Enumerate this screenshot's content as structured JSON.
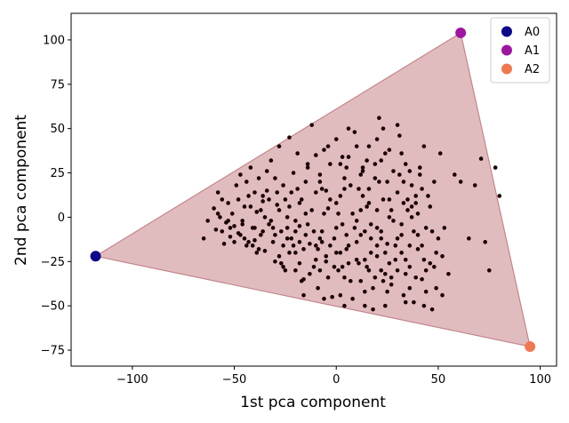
{
  "chart_data": {
    "type": "scatter",
    "title": "",
    "xlabel": "1st pca component",
    "ylabel": "2nd pca component",
    "xlim": [
      -130,
      108
    ],
    "ylim": [
      -84,
      115
    ],
    "xticks": [
      -100,
      -50,
      0,
      50,
      100
    ],
    "yticks": [
      -75,
      -50,
      -25,
      0,
      25,
      50,
      75,
      100
    ],
    "grid": false,
    "legend_position": "top-right",
    "hull": {
      "vertices": [
        [
          -118,
          -22
        ],
        [
          61,
          104
        ],
        [
          95,
          -73
        ]
      ],
      "fill": "#c47a80",
      "edge": "#b0646c"
    },
    "archetypes": [
      {
        "name": "A0",
        "x": -118,
        "y": -22,
        "color": "#0d0887"
      },
      {
        "name": "A1",
        "x": 61,
        "y": 104,
        "color": "#9c179e"
      },
      {
        "name": "A2",
        "x": 95,
        "y": -73,
        "color": "#ed7953"
      }
    ],
    "points_color": "#1a0000",
    "points": [
      [
        -65,
        -12
      ],
      [
        -63,
        -2
      ],
      [
        -60,
        5
      ],
      [
        -59,
        -7
      ],
      [
        -58,
        14
      ],
      [
        -57,
        0
      ],
      [
        -56,
        -8
      ],
      [
        -55,
        -15
      ],
      [
        -54,
        -3
      ],
      [
        -53,
        8
      ],
      [
        -52,
        -11
      ],
      [
        -51,
        2
      ],
      [
        -50,
        -5
      ],
      [
        -49,
        18
      ],
      [
        -48,
        -9
      ],
      [
        -47,
        24
      ],
      [
        -46,
        -2
      ],
      [
        -45,
        6
      ],
      [
        -44,
        -16
      ],
      [
        -43,
        12
      ],
      [
        -42,
        28
      ],
      [
        -41,
        -6
      ],
      [
        -40,
        -13
      ],
      [
        -39,
        3
      ],
      [
        -38,
        22
      ],
      [
        -37,
        -10
      ],
      [
        -36,
        9
      ],
      [
        -35,
        -19
      ],
      [
        -34,
        15
      ],
      [
        -33,
        -4
      ],
      [
        -32,
        32
      ],
      [
        -31,
        -14
      ],
      [
        -30,
        -25
      ],
      [
        -29,
        7
      ],
      [
        -28,
        40
      ],
      [
        -27,
        -8
      ],
      [
        -26,
        18
      ],
      [
        -25,
        -30
      ],
      [
        -24,
        0
      ],
      [
        -23,
        45
      ],
      [
        -22,
        -12
      ],
      [
        -21,
        25
      ],
      [
        -20,
        -20
      ],
      [
        -19,
        36
      ],
      [
        -18,
        -5
      ],
      [
        -17,
        10
      ],
      [
        -16,
        -35
      ],
      [
        -15,
        2
      ],
      [
        -14,
        28
      ],
      [
        -13,
        -15
      ],
      [
        -12,
        52
      ],
      [
        -11,
        -28
      ],
      [
        -10,
        14
      ],
      [
        -9,
        -40
      ],
      [
        -8,
        20
      ],
      [
        -7,
        -8
      ],
      [
        -6,
        38
      ],
      [
        -5,
        -22
      ],
      [
        -4,
        5
      ],
      [
        -3,
        30
      ],
      [
        -2,
        -45
      ],
      [
        -1,
        -12
      ],
      [
        0,
        44
      ],
      [
        1,
        -30
      ],
      [
        2,
        12
      ],
      [
        3,
        -4
      ],
      [
        4,
        22
      ],
      [
        5,
        -18
      ],
      [
        6,
        34
      ],
      [
        7,
        -36
      ],
      [
        8,
        2
      ],
      [
        9,
        48
      ],
      [
        10,
        -24
      ],
      [
        11,
        16
      ],
      [
        12,
        -10
      ],
      [
        13,
        28
      ],
      [
        14,
        -42
      ],
      [
        15,
        6
      ],
      [
        16,
        40
      ],
      [
        17,
        -20
      ],
      [
        18,
        -52
      ],
      [
        19,
        22
      ],
      [
        20,
        -6
      ],
      [
        21,
        56
      ],
      [
        22,
        -30
      ],
      [
        23,
        10
      ],
      [
        24,
        36
      ],
      [
        25,
        -15
      ],
      [
        26,
        0
      ],
      [
        27,
        -38
      ],
      [
        28,
        26
      ],
      [
        29,
        -24
      ],
      [
        30,
        14
      ],
      [
        31,
        46
      ],
      [
        32,
        -10
      ],
      [
        33,
        -44
      ],
      [
        34,
        30
      ],
      [
        35,
        4
      ],
      [
        36,
        -28
      ],
      [
        37,
        18
      ],
      [
        38,
        -48
      ],
      [
        39,
        8
      ],
      [
        40,
        -18
      ],
      [
        41,
        24
      ],
      [
        42,
        -35
      ],
      [
        43,
        40
      ],
      [
        44,
        -6
      ],
      [
        45,
        12
      ],
      [
        46,
        -26
      ],
      [
        47,
        -52
      ],
      [
        48,
        20
      ],
      [
        49,
        -40
      ],
      [
        50,
        -12
      ],
      [
        51,
        36
      ],
      [
        52,
        -22
      ],
      [
        55,
        -32
      ],
      [
        58,
        24
      ],
      [
        61,
        20
      ],
      [
        65,
        -12
      ],
      [
        68,
        18
      ],
      [
        71,
        33
      ],
      [
        73,
        -14
      ],
      [
        75,
        -30
      ],
      [
        78,
        28
      ],
      [
        80,
        12
      ],
      [
        -30,
        -10
      ],
      [
        -20,
        -2
      ],
      [
        -10,
        -16
      ],
      [
        0,
        -6
      ],
      [
        10,
        -14
      ],
      [
        20,
        -22
      ],
      [
        30,
        -12
      ],
      [
        -25,
        10
      ],
      [
        -15,
        20
      ],
      [
        -5,
        15
      ],
      [
        5,
        28
      ],
      [
        15,
        32
      ],
      [
        25,
        20
      ],
      [
        35,
        10
      ],
      [
        -35,
        0
      ],
      [
        -45,
        -12
      ],
      [
        -15,
        -10
      ],
      [
        -5,
        -25
      ],
      [
        5,
        -10
      ],
      [
        15,
        -28
      ],
      [
        25,
        -42
      ],
      [
        -20,
        -30
      ],
      [
        -10,
        -24
      ],
      [
        0,
        8
      ],
      [
        10,
        -2
      ],
      [
        20,
        4
      ],
      [
        30,
        -30
      ],
      [
        40,
        2
      ],
      [
        -38,
        -18
      ],
      [
        -28,
        -22
      ],
      [
        -18,
        8
      ],
      [
        -8,
        -30
      ],
      [
        2,
        -20
      ],
      [
        12,
        -36
      ],
      [
        22,
        -12
      ],
      [
        32,
        -20
      ],
      [
        -40,
        14
      ],
      [
        -30,
        22
      ],
      [
        -10,
        35
      ],
      [
        10,
        40
      ],
      [
        20,
        44
      ],
      [
        30,
        52
      ],
      [
        -26,
        -16
      ],
      [
        -16,
        -18
      ],
      [
        -6,
        2
      ],
      [
        4,
        -34
      ],
      [
        14,
        -8
      ],
      [
        24,
        -50
      ],
      [
        34,
        -32
      ],
      [
        44,
        -42
      ],
      [
        -52,
        -6
      ],
      [
        -42,
        6
      ],
      [
        -32,
        -2
      ],
      [
        -22,
        14
      ],
      [
        -12,
        4
      ],
      [
        8,
        -46
      ],
      [
        18,
        -40
      ],
      [
        28,
        -2
      ],
      [
        38,
        -8
      ],
      [
        48,
        -28
      ],
      [
        -58,
        2
      ],
      [
        -48,
        10
      ],
      [
        -36,
        -8
      ],
      [
        -24,
        -6
      ],
      [
        -14,
        -4
      ],
      [
        6,
        -16
      ],
      [
        16,
        16
      ],
      [
        26,
        -26
      ],
      [
        36,
        -40
      ],
      [
        46,
        6
      ],
      [
        -44,
        20
      ],
      [
        -34,
        26
      ],
      [
        -4,
        40
      ],
      [
        6,
        50
      ],
      [
        16,
        8
      ],
      [
        26,
        38
      ],
      [
        36,
        26
      ],
      [
        -18,
        -26
      ],
      [
        -8,
        -12
      ],
      [
        2,
        30
      ],
      [
        12,
        24
      ],
      [
        22,
        32
      ],
      [
        32,
        36
      ],
      [
        42,
        16
      ],
      [
        52,
        -44
      ],
      [
        -28,
        4
      ],
      [
        -18,
        -14
      ],
      [
        -8,
        24
      ],
      [
        2,
        -44
      ],
      [
        12,
        4
      ],
      [
        22,
        -8
      ],
      [
        32,
        -4
      ],
      [
        42,
        -16
      ],
      [
        -46,
        -4
      ],
      [
        -36,
        12
      ],
      [
        -26,
        -28
      ],
      [
        -6,
        -46
      ],
      [
        4,
        16
      ],
      [
        14,
        -24
      ],
      [
        24,
        -32
      ],
      [
        34,
        -24
      ],
      [
        44,
        -30
      ],
      [
        -24,
        -12
      ],
      [
        -14,
        30
      ],
      [
        -4,
        -34
      ],
      [
        6,
        -26
      ],
      [
        16,
        -30
      ],
      [
        26,
        10
      ],
      [
        36,
        -16
      ],
      [
        -50,
        -14
      ],
      [
        -40,
        -6
      ],
      [
        -20,
        -8
      ],
      [
        0,
        -20
      ],
      [
        20,
        -16
      ],
      [
        40,
        -10
      ],
      [
        -33,
        10
      ],
      [
        -23,
        -20
      ],
      [
        -13,
        -32
      ],
      [
        -3,
        10
      ],
      [
        7,
        18
      ],
      [
        17,
        -4
      ],
      [
        27,
        4
      ],
      [
        37,
        0
      ],
      [
        47,
        -8
      ],
      [
        -11,
        -8
      ],
      [
        1,
        2
      ],
      [
        11,
        -26
      ],
      [
        21,
        20
      ],
      [
        31,
        24
      ],
      [
        41,
        28
      ],
      [
        -43,
        -14
      ],
      [
        -31,
        -6
      ],
      [
        -19,
        16
      ],
      [
        -7,
        -14
      ],
      [
        3,
        -28
      ],
      [
        13,
        12
      ],
      [
        23,
        -36
      ],
      [
        33,
        8
      ],
      [
        43,
        -24
      ],
      [
        53,
        -6
      ],
      [
        -37,
        4
      ],
      [
        -27,
        -26
      ],
      [
        -17,
        -36
      ],
      [
        -7,
        16
      ],
      [
        3,
        34
      ],
      [
        13,
        26
      ],
      [
        23,
        50
      ],
      [
        33,
        20
      ],
      [
        43,
        -50
      ],
      [
        -39,
        -20
      ],
      [
        -29,
        14
      ],
      [
        -9,
        -18
      ],
      [
        9,
        -6
      ],
      [
        19,
        30
      ],
      [
        29,
        -16
      ],
      [
        39,
        12
      ],
      [
        49,
        -20
      ],
      [
        -53,
        -2
      ],
      [
        -47,
        -10
      ],
      [
        -23,
        6
      ],
      [
        -3,
        -16
      ],
      [
        17,
        -12
      ],
      [
        27,
        -34
      ],
      [
        37,
        6
      ],
      [
        -41,
        -16
      ],
      [
        -21,
        -16
      ],
      [
        -1,
        -28
      ],
      [
        19,
        -34
      ],
      [
        39,
        -34
      ],
      [
        -56,
        10
      ],
      [
        -16,
        -44
      ],
      [
        4,
        -50
      ],
      [
        14,
        -50
      ],
      [
        24,
        -20
      ],
      [
        34,
        -48
      ]
    ]
  }
}
